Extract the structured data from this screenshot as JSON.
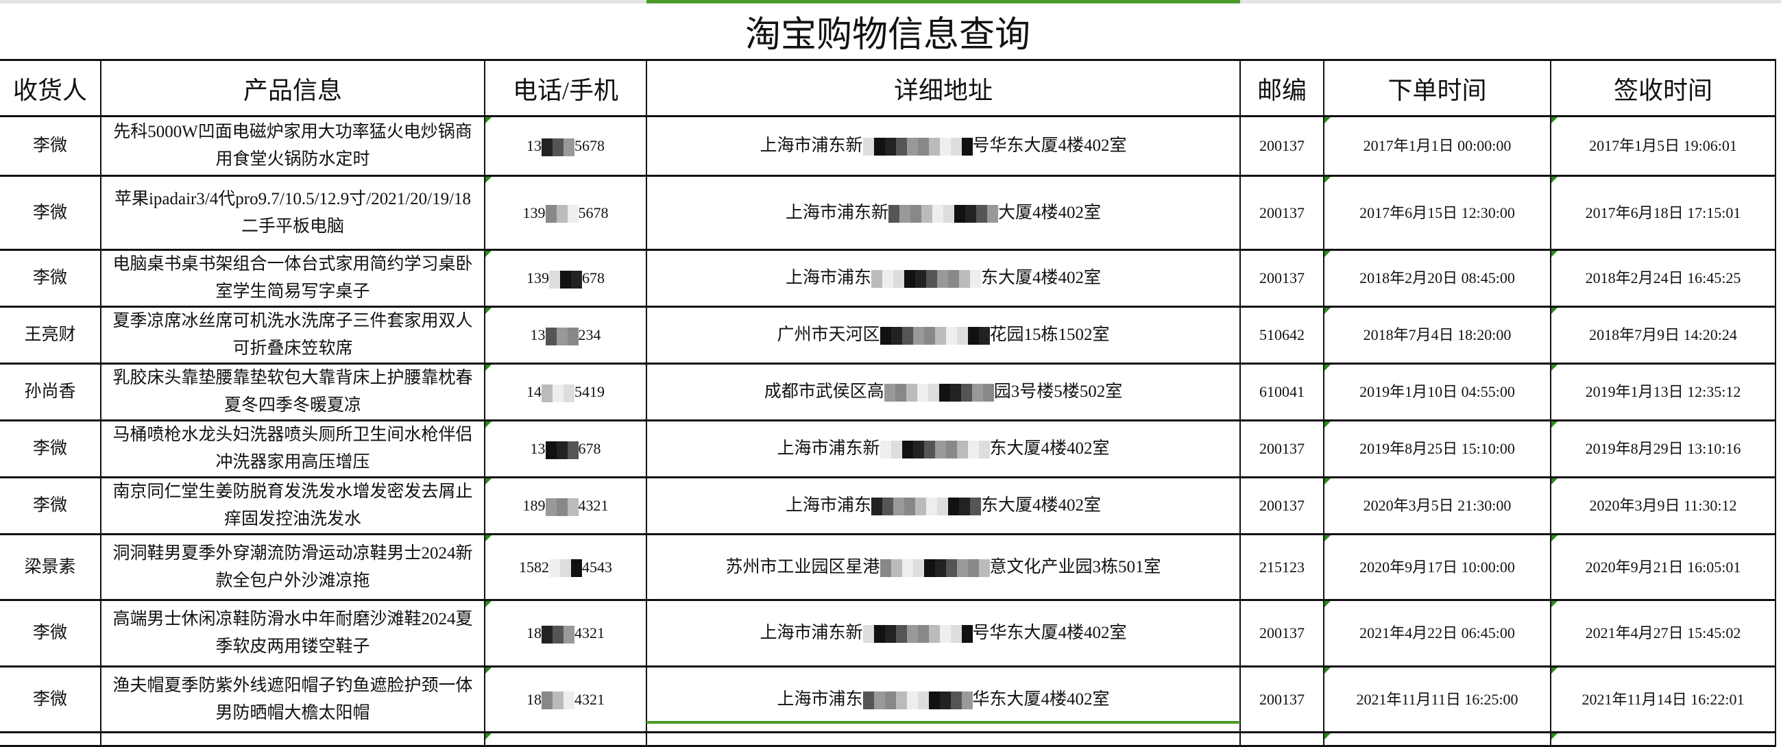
{
  "title": "淘宝购物信息查询",
  "colors": {
    "accent_green": "#4a9a2a",
    "border": "#111111"
  },
  "headers": [
    "收货人",
    "产品信息",
    "电话/手机",
    "详细地址",
    "邮编",
    "下单时间",
    "签收时间"
  ],
  "rows": [
    {
      "name": "李微",
      "product": "先科5000W凹面电磁炉家用大功率猛火电炒锅商用食堂火锅防水定时",
      "phone_pre": "13",
      "phone_suf": "5678",
      "addr_pre": "上海市浦东新",
      "addr_suf": "号华东大厦4楼402室",
      "zip": "200137",
      "order_time": "2017年1月1日 00:00:00",
      "sign_time": "2017年1月5日 19:06:01"
    },
    {
      "name": "李微",
      "product": "苹果ipadair3/4代pro9.7/10.5/12.9寸/2021/20/19/18二手平板电脑",
      "phone_pre": "139",
      "phone_suf": "5678",
      "addr_pre": "上海市浦东新",
      "addr_suf": "大厦4楼402室",
      "zip": "200137",
      "order_time": "2017年6月15日 12:30:00",
      "sign_time": "2017年6月18日 17:15:01"
    },
    {
      "name": "李微",
      "product": "电脑桌书桌书架组合一体台式家用简约学习桌卧室学生简易写字桌子",
      "phone_pre": "139",
      "phone_suf": "678",
      "addr_pre": "上海市浦东",
      "addr_suf": "东大厦4楼402室",
      "zip": "200137",
      "order_time": "2018年2月20日 08:45:00",
      "sign_time": "2018年2月24日 16:45:25"
    },
    {
      "name": "王亮财",
      "product": "夏季凉席冰丝席可机洗水洗席子三件套家用双人可折叠床笠软席",
      "phone_pre": "13",
      "phone_suf": "234",
      "addr_pre": "广州市天河区",
      "addr_suf": "花园15栋1502室",
      "zip": "510642",
      "order_time": "2018年7月4日 18:20:00",
      "sign_time": "2018年7月9日 14:20:24"
    },
    {
      "name": "孙尚香",
      "product": "乳胶床头靠垫腰靠垫软包大靠背床上护腰靠枕春夏冬四季冬暖夏凉",
      "phone_pre": "14",
      "phone_suf": "5419",
      "addr_pre": "成都市武侯区高",
      "addr_suf": "园3号楼5楼502室",
      "zip": "610041",
      "order_time": "2019年1月10日 04:55:00",
      "sign_time": "2019年1月13日 12:35:12"
    },
    {
      "name": "李微",
      "product": "马桶喷枪水龙头妇洗器喷头厕所卫生间水枪伴侣冲洗器家用高压增压",
      "phone_pre": "13",
      "phone_suf": "678",
      "addr_pre": "上海市浦东新",
      "addr_suf": "东大厦4楼402室",
      "zip": "200137",
      "order_time": "2019年8月25日 15:10:00",
      "sign_time": "2019年8月29日 13:10:16"
    },
    {
      "name": "李微",
      "product": "南京同仁堂生姜防脱育发洗发水增发密发去屑止痒固发控油洗发水",
      "phone_pre": "189",
      "phone_suf": "4321",
      "addr_pre": "上海市浦东",
      "addr_suf": "东大厦4楼402室",
      "zip": "200137",
      "order_time": "2020年3月5日 21:30:00",
      "sign_time": "2020年3月9日 11:30:12"
    },
    {
      "name": "梁景素",
      "product": "洞洞鞋男夏季外穿潮流防滑运动凉鞋男士2024新款全包户外沙滩凉拖",
      "phone_pre": "1582",
      "phone_suf": "4543",
      "addr_pre": "苏州市工业园区星港",
      "addr_suf": "意文化产业园3栋501室",
      "zip": "215123",
      "order_time": "2020年9月17日 10:00:00",
      "sign_time": "2020年9月21日 16:05:01"
    },
    {
      "name": "李微",
      "product": "高端男士休闲凉鞋防滑水中年耐磨沙滩鞋2024夏季软皮两用镂空鞋子",
      "phone_pre": "18",
      "phone_suf": "4321",
      "addr_pre": "上海市浦东新",
      "addr_suf": "号华东大厦4楼402室",
      "zip": "200137",
      "order_time": "2021年4月22日 06:45:00",
      "sign_time": "2021年4月27日 15:45:02"
    },
    {
      "name": "李微",
      "product": "渔夫帽夏季防紫外线遮阳帽子钓鱼遮脸护颈一体男防晒帽大檐太阳帽",
      "phone_pre": "18",
      "phone_suf": "4321",
      "addr_pre": "上海市浦东",
      "addr_suf": "华东大厦4楼402室",
      "zip": "200137",
      "order_time": "2021年11月11日 16:25:00",
      "sign_time": "2021年11月14日 16:22:01"
    }
  ]
}
